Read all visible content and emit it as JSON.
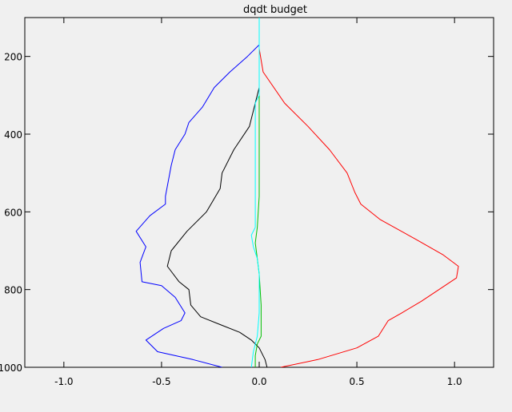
{
  "chart_data": {
    "type": "line",
    "title": "dqdt budget",
    "xlabel": "",
    "ylabel": "",
    "xlim": [
      -1.2,
      1.2
    ],
    "ylim": [
      1000,
      100
    ],
    "y_reversed": true,
    "grid": false,
    "legend": "none",
    "x_ticks": [
      -1.0,
      -0.5,
      0.0,
      0.5,
      1.0
    ],
    "x_tick_labels": [
      "-1.0",
      "-0.5",
      "0.0",
      "0.5",
      "1.0"
    ],
    "y_ticks": [
      200,
      400,
      600,
      800,
      1000
    ],
    "y_tick_labels": [
      "200",
      "400",
      "600",
      "800",
      "1000"
    ],
    "series": [
      {
        "color": "#ff0000",
        "points": [
          [
            0.0,
            180
          ],
          [
            0.02,
            240
          ],
          [
            0.13,
            320
          ],
          [
            0.25,
            380
          ],
          [
            0.36,
            440
          ],
          [
            0.45,
            500
          ],
          [
            0.49,
            550
          ],
          [
            0.52,
            580
          ],
          [
            0.62,
            620
          ],
          [
            0.8,
            670
          ],
          [
            0.94,
            710
          ],
          [
            1.02,
            740
          ],
          [
            1.01,
            770
          ],
          [
            0.95,
            790
          ],
          [
            0.83,
            830
          ],
          [
            0.73,
            860
          ],
          [
            0.66,
            880
          ],
          [
            0.61,
            920
          ],
          [
            0.5,
            950
          ],
          [
            0.3,
            980
          ],
          [
            0.11,
            1000
          ]
        ]
      },
      {
        "color": "#0000ff",
        "points": [
          [
            0.0,
            170
          ],
          [
            -0.06,
            200
          ],
          [
            -0.15,
            240
          ],
          [
            -0.23,
            280
          ],
          [
            -0.29,
            330
          ],
          [
            -0.36,
            370
          ],
          [
            -0.38,
            400
          ],
          [
            -0.43,
            440
          ],
          [
            -0.45,
            480
          ],
          [
            -0.48,
            560
          ],
          [
            -0.48,
            580
          ],
          [
            -0.56,
            610
          ],
          [
            -0.63,
            650
          ],
          [
            -0.58,
            690
          ],
          [
            -0.61,
            730
          ],
          [
            -0.6,
            780
          ],
          [
            -0.5,
            790
          ],
          [
            -0.43,
            820
          ],
          [
            -0.38,
            860
          ],
          [
            -0.4,
            880
          ],
          [
            -0.49,
            900
          ],
          [
            -0.58,
            930
          ],
          [
            -0.52,
            960
          ],
          [
            -0.34,
            980
          ],
          [
            -0.19,
            1000
          ]
        ]
      },
      {
        "color": "#000000",
        "points": [
          [
            0.0,
            190
          ],
          [
            0.0,
            280
          ],
          [
            -0.02,
            320
          ],
          [
            -0.05,
            380
          ],
          [
            -0.13,
            440
          ],
          [
            -0.19,
            500
          ],
          [
            -0.2,
            540
          ],
          [
            -0.27,
            600
          ],
          [
            -0.37,
            650
          ],
          [
            -0.45,
            700
          ],
          [
            -0.47,
            740
          ],
          [
            -0.41,
            780
          ],
          [
            -0.36,
            800
          ],
          [
            -0.35,
            840
          ],
          [
            -0.3,
            870
          ],
          [
            -0.2,
            890
          ],
          [
            -0.1,
            910
          ],
          [
            -0.04,
            930
          ],
          [
            0.0,
            950
          ],
          [
            0.03,
            980
          ],
          [
            0.04,
            1000
          ]
        ]
      },
      {
        "color": "#00c000",
        "points": [
          [
            0.0,
            230
          ],
          [
            0.0,
            400
          ],
          [
            0.0,
            560
          ],
          [
            -0.01,
            640
          ],
          [
            -0.02,
            680
          ],
          [
            -0.01,
            720
          ],
          [
            0.0,
            760
          ],
          [
            0.01,
            840
          ],
          [
            0.01,
            920
          ],
          [
            -0.01,
            940
          ],
          [
            -0.02,
            970
          ],
          [
            -0.02,
            1000
          ]
        ]
      },
      {
        "color": "#00ffff",
        "points": [
          [
            0.0,
            100
          ],
          [
            0.0,
            200
          ],
          [
            0.0,
            300
          ],
          [
            -0.02,
            320
          ],
          [
            -0.02,
            500
          ],
          [
            -0.02,
            600
          ],
          [
            -0.02,
            640
          ],
          [
            -0.04,
            660
          ],
          [
            -0.03,
            690
          ],
          [
            -0.01,
            720
          ],
          [
            0.0,
            760
          ],
          [
            0.0,
            860
          ],
          [
            -0.01,
            920
          ],
          [
            -0.03,
            960
          ],
          [
            -0.04,
            1000
          ]
        ]
      }
    ]
  }
}
